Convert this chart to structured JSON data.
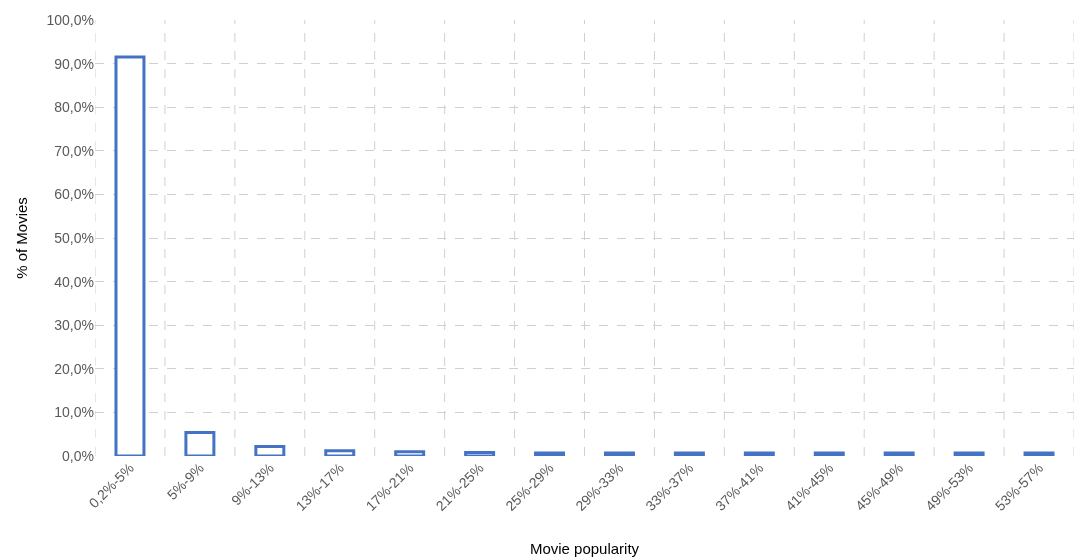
{
  "chart_data": {
    "type": "bar",
    "xlabel": "Movie popularity",
    "ylabel": "% of Movies",
    "categories": [
      "0,2%-5%",
      "5%-9%",
      "9%-13%",
      "13%-17%",
      "17%-21%",
      "21%-25%",
      "25%-29%",
      "29%-33%",
      "33%-37%",
      "37%-41%",
      "41%-45%",
      "45%-49%",
      "49%-53%",
      "53%-57%"
    ],
    "series": [
      {
        "color": "#4472c4",
        "values": [
          91.5,
          5.4,
          2.2,
          1.2,
          1.0,
          0.8,
          0.7,
          0.7,
          0.7,
          0.7,
          0.7,
          0.7,
          0.7,
          0.7
        ]
      }
    ],
    "ylim": [
      0,
      100
    ],
    "yticks": [
      {
        "value": 0,
        "label": "0,0%"
      },
      {
        "value": 10,
        "label": "10,0%"
      },
      {
        "value": 20,
        "label": "20,0%"
      },
      {
        "value": 30,
        "label": "30,0%"
      },
      {
        "value": 40,
        "label": "40,0%"
      },
      {
        "value": 50,
        "label": "50,0%"
      },
      {
        "value": 60,
        "label": "60,0%"
      },
      {
        "value": 70,
        "label": "70,0%"
      },
      {
        "value": 80,
        "label": "80,0%"
      },
      {
        "value": 90,
        "label": "90,0%"
      },
      {
        "value": 100,
        "label": "100,0%"
      }
    ],
    "grid": true
  }
}
